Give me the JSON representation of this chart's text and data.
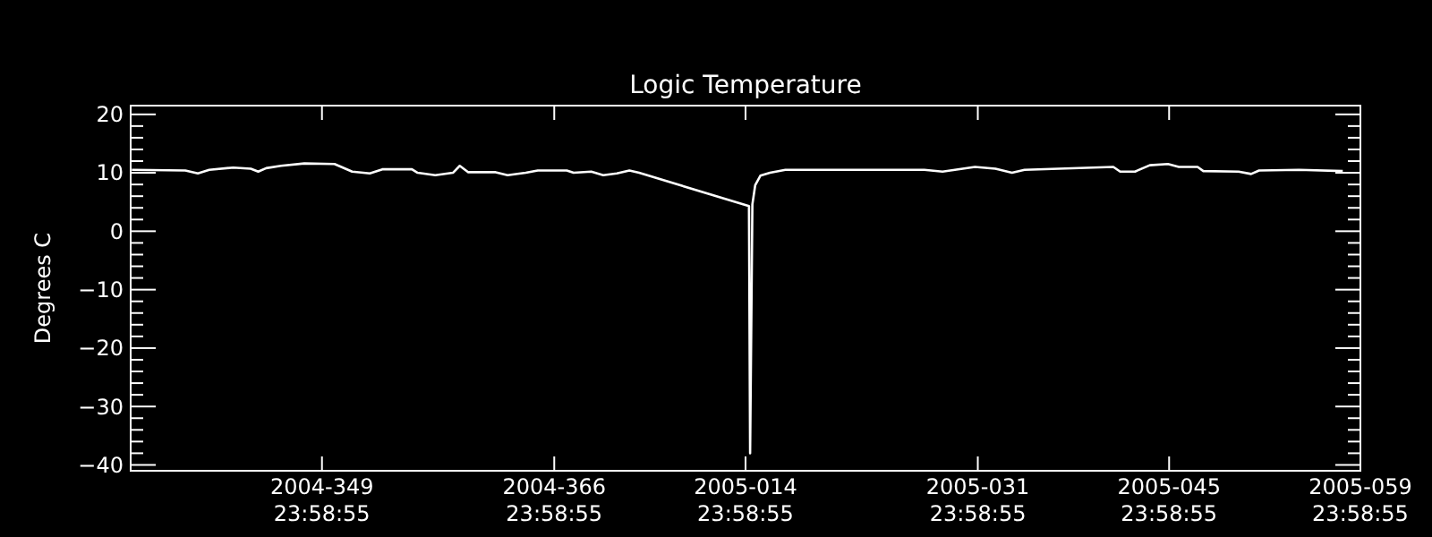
{
  "chart_data": {
    "type": "line",
    "title": "Logic Temperature",
    "ylabel": "Degrees C",
    "x": [
      "2004-12-01T02:00",
      "2004-12-05T00:00",
      "2004-12-05T22:00",
      "2004-12-06T18:00",
      "2004-12-08T12:00",
      "2004-12-09T19:00",
      "2004-12-10T08:00",
      "2004-12-10T22:00",
      "2004-12-12T00:00",
      "2004-12-13T17:00",
      "2004-12-15T22:00",
      "2004-12-17T05:00",
      "2004-12-18T12:00",
      "2004-12-19T10:00",
      "2004-12-21T14:00",
      "2004-12-22T00:00",
      "2004-12-23T07:00",
      "2004-12-24T14:00",
      "2004-12-25T02:00",
      "2004-12-25T17:00",
      "2004-12-27T17:00",
      "2004-12-28T14:00",
      "2004-12-29T22:00",
      "2004-12-30T19:00",
      "2005-01-01T22:00",
      "2005-01-02T10:00",
      "2005-01-03T17:00",
      "2005-01-04T14:00",
      "2005-01-05T14:00",
      "2005-01-06T12:00",
      "2005-01-07T05:00",
      "2005-01-15T06:00",
      "2005-01-15T08:00",
      "2005-01-15T12:00",
      "2005-01-15T17:00",
      "2005-01-16T02:00",
      "2005-01-16T19:00",
      "2005-01-17T22:00",
      "2005-01-28T02:00",
      "2005-01-29T10:00",
      "2005-01-31T19:00",
      "2005-02-02T07:00",
      "2005-02-03T12:00",
      "2005-02-04T10:00",
      "2005-02-10T22:00",
      "2005-02-11T10:00",
      "2005-02-12T12:00",
      "2005-02-13T14:00",
      "2005-02-14T22:00",
      "2005-02-15T17:00",
      "2005-02-17T02:00",
      "2005-02-17T12:00",
      "2005-02-20T02:00",
      "2005-02-21T00:00",
      "2005-02-21T14:00",
      "2005-02-24T12:00",
      "2005-02-27T17:00"
    ],
    "series": [
      {
        "color": "#ffffff",
        "values": [
          10.5,
          10.4,
          9.9,
          10.5,
          10.9,
          10.7,
          10.2,
          10.8,
          11.2,
          11.6,
          11.5,
          10.2,
          9.9,
          10.6,
          10.6,
          10.0,
          9.6,
          10.0,
          11.2,
          10.1,
          10.1,
          9.6,
          10.0,
          10.4,
          10.4,
          10.0,
          10.2,
          9.6,
          9.9,
          10.4,
          10.0,
          4.3,
          -38.0,
          4.6,
          7.9,
          9.5,
          10.0,
          10.5,
          10.5,
          10.2,
          11.0,
          10.7,
          10.0,
          10.5,
          11.0,
          10.2,
          10.2,
          11.3,
          11.5,
          11.0,
          11.0,
          10.3,
          10.2,
          9.8,
          10.4,
          10.5,
          10.3
        ]
      }
    ],
    "xlim": [
      "2004-11-30T23:58",
      "2005-02-28T23:58"
    ],
    "xticks": [
      {
        "value": "2004-12-14T23:58",
        "label": "2004-349\n23:58:55"
      },
      {
        "value": "2004-12-31T23:58",
        "label": "2004-366\n23:58:55"
      },
      {
        "value": "2005-01-14T23:58",
        "label": "2005-014\n23:58:55"
      },
      {
        "value": "2005-01-31T23:58",
        "label": "2005-031\n23:58:55"
      },
      {
        "value": "2005-02-14T23:58",
        "label": "2005-045\n23:58:55"
      },
      {
        "value": "2005-02-28T23:58",
        "label": "2005-059\n23:58:55"
      }
    ],
    "ylim": [
      -41,
      21.5
    ],
    "yticks": [
      -40,
      {
        "value": -38,
        "label": null
      },
      {
        "value": -36,
        "label": null
      },
      {
        "value": -34,
        "label": null
      },
      {
        "value": -32,
        "label": null
      },
      -30,
      {
        "value": -28,
        "label": null
      },
      {
        "value": -26,
        "label": null
      },
      {
        "value": -24,
        "label": null
      },
      {
        "value": -22,
        "label": null
      },
      -20,
      {
        "value": -18,
        "label": null
      },
      {
        "value": -16,
        "label": null
      },
      {
        "value": -14,
        "label": null
      },
      {
        "value": -12,
        "label": null
      },
      -10,
      {
        "value": -8,
        "label": null
      },
      {
        "value": -6,
        "label": null
      },
      {
        "value": -4,
        "label": null
      },
      {
        "value": -2,
        "label": null
      },
      0,
      {
        "value": 2,
        "label": null
      },
      {
        "value": 4,
        "label": null
      },
      {
        "value": 6,
        "label": null
      },
      {
        "value": 8,
        "label": null
      },
      10,
      {
        "value": 12,
        "label": null
      },
      {
        "value": 14,
        "label": null
      },
      {
        "value": 16,
        "label": null
      },
      {
        "value": 18,
        "label": null
      },
      20
    ],
    "grid": false,
    "marker": "none",
    "line_style": "solid"
  }
}
